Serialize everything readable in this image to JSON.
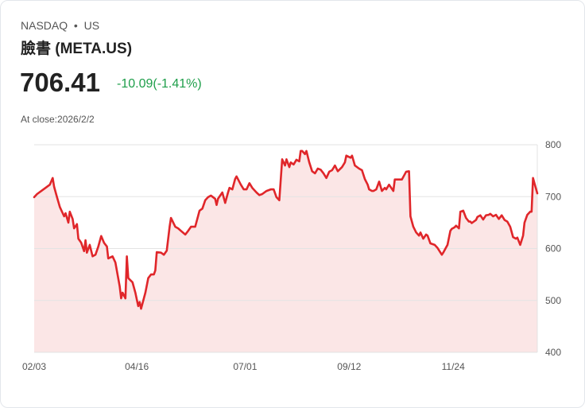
{
  "header": {
    "exchange": "NASDAQ",
    "separator": "•",
    "market": "US",
    "name": "臉書 (META.US)",
    "price": "706.41",
    "change": "-10.09(-1.41%)",
    "close_label": "At close:2026/2/2"
  },
  "colors": {
    "line": "#e0262a",
    "fill": "#fbe6e6",
    "change": "#1e9e4a",
    "grid": "#e3e3e3"
  },
  "chart_data": {
    "type": "area",
    "title": "",
    "xlabel": "",
    "ylabel": "",
    "ylim": [
      400,
      800
    ],
    "yticks": [
      800,
      700,
      600,
      500,
      400
    ],
    "xlim": [
      0,
      353
    ],
    "xticks": [
      {
        "day": 0,
        "label": "02/03"
      },
      {
        "day": 72,
        "label": "04/16"
      },
      {
        "day": 148,
        "label": "07/01"
      },
      {
        "day": 221,
        "label": "09/12"
      },
      {
        "day": 294,
        "label": "11/24"
      }
    ],
    "grid": true,
    "legend": "none",
    "x_unit": "days since 02/03",
    "series": [
      {
        "name": "META.US",
        "points": [
          [
            0,
            699
          ],
          [
            2,
            705
          ],
          [
            5,
            711
          ],
          [
            8,
            717
          ],
          [
            11,
            723
          ],
          [
            13,
            736
          ],
          [
            14,
            719
          ],
          [
            16,
            699
          ],
          [
            18,
            680
          ],
          [
            21,
            662
          ],
          [
            22,
            668
          ],
          [
            24,
            650
          ],
          [
            25,
            671
          ],
          [
            27,
            657
          ],
          [
            28,
            639
          ],
          [
            30,
            647
          ],
          [
            31,
            619
          ],
          [
            33,
            611
          ],
          [
            35,
            595
          ],
          [
            36,
            616
          ],
          [
            37,
            592
          ],
          [
            39,
            607
          ],
          [
            41,
            585
          ],
          [
            43,
            588
          ],
          [
            45,
            604
          ],
          [
            47,
            624
          ],
          [
            49,
            611
          ],
          [
            51,
            604
          ],
          [
            52,
            581
          ],
          [
            55,
            585
          ],
          [
            57,
            573
          ],
          [
            60,
            527
          ],
          [
            61,
            504
          ],
          [
            62,
            515
          ],
          [
            64,
            504
          ],
          [
            65,
            585
          ],
          [
            66,
            543
          ],
          [
            69,
            535
          ],
          [
            71,
            515
          ],
          [
            73,
            489
          ],
          [
            74,
            497
          ],
          [
            75,
            484
          ],
          [
            78,
            515
          ],
          [
            80,
            543
          ],
          [
            82,
            550
          ],
          [
            84,
            550
          ],
          [
            85,
            558
          ],
          [
            86,
            593
          ],
          [
            89,
            592
          ],
          [
            91,
            588
          ],
          [
            93,
            596
          ],
          [
            95,
            642
          ],
          [
            96,
            659
          ],
          [
            99,
            642
          ],
          [
            101,
            639
          ],
          [
            103,
            634
          ],
          [
            106,
            627
          ],
          [
            108,
            634
          ],
          [
            110,
            642
          ],
          [
            113,
            642
          ],
          [
            116,
            673
          ],
          [
            118,
            677
          ],
          [
            120,
            693
          ],
          [
            122,
            699
          ],
          [
            124,
            702
          ],
          [
            127,
            696
          ],
          [
            128,
            684
          ],
          [
            129,
            696
          ],
          [
            132,
            708
          ],
          [
            134,
            688
          ],
          [
            136,
            708
          ],
          [
            137,
            717
          ],
          [
            139,
            714
          ],
          [
            141,
            734
          ],
          [
            142,
            739
          ],
          [
            145,
            723
          ],
          [
            147,
            714
          ],
          [
            149,
            714
          ],
          [
            151,
            726
          ],
          [
            153,
            717
          ],
          [
            156,
            708
          ],
          [
            158,
            703
          ],
          [
            160,
            705
          ],
          [
            163,
            711
          ],
          [
            166,
            714
          ],
          [
            168,
            714
          ],
          [
            170,
            699
          ],
          [
            172,
            693
          ],
          [
            174,
            772
          ],
          [
            176,
            760
          ],
          [
            177,
            772
          ],
          [
            179,
            757
          ],
          [
            180,
            766
          ],
          [
            182,
            762
          ],
          [
            184,
            771
          ],
          [
            186,
            768
          ],
          [
            187,
            788
          ],
          [
            188,
            788
          ],
          [
            190,
            782
          ],
          [
            191,
            788
          ],
          [
            193,
            766
          ],
          [
            195,
            749
          ],
          [
            197,
            745
          ],
          [
            199,
            754
          ],
          [
            201,
            752
          ],
          [
            203,
            745
          ],
          [
            205,
            736
          ],
          [
            207,
            748
          ],
          [
            209,
            751
          ],
          [
            211,
            760
          ],
          [
            213,
            749
          ],
          [
            216,
            757
          ],
          [
            218,
            766
          ],
          [
            219,
            779
          ],
          [
            222,
            775
          ],
          [
            223,
            779
          ],
          [
            225,
            760
          ],
          [
            228,
            754
          ],
          [
            230,
            751
          ],
          [
            232,
            734
          ],
          [
            234,
            723
          ],
          [
            235,
            714
          ],
          [
            237,
            711
          ],
          [
            238,
            711
          ],
          [
            240,
            714
          ],
          [
            242,
            729
          ],
          [
            244,
            711
          ],
          [
            246,
            717
          ],
          [
            247,
            714
          ],
          [
            249,
            723
          ],
          [
            252,
            711
          ],
          [
            253,
            733
          ],
          [
            255,
            733
          ],
          [
            258,
            733
          ],
          [
            261,
            748
          ],
          [
            263,
            749
          ],
          [
            264,
            662
          ],
          [
            266,
            642
          ],
          [
            268,
            631
          ],
          [
            270,
            625
          ],
          [
            271,
            631
          ],
          [
            273,
            619
          ],
          [
            275,
            627
          ],
          [
            276,
            625
          ],
          [
            278,
            610
          ],
          [
            281,
            607
          ],
          [
            283,
            601
          ],
          [
            286,
            588
          ],
          [
            287,
            592
          ],
          [
            290,
            607
          ],
          [
            292,
            634
          ],
          [
            293,
            638
          ],
          [
            295,
            641
          ],
          [
            296,
            644
          ],
          [
            298,
            639
          ],
          [
            299,
            671
          ],
          [
            301,
            673
          ],
          [
            303,
            659
          ],
          [
            305,
            652
          ],
          [
            306,
            652
          ],
          [
            307,
            649
          ],
          [
            310,
            655
          ],
          [
            311,
            661
          ],
          [
            313,
            664
          ],
          [
            315,
            656
          ],
          [
            317,
            664
          ],
          [
            319,
            665
          ],
          [
            320,
            667
          ],
          [
            322,
            662
          ],
          [
            324,
            665
          ],
          [
            326,
            657
          ],
          [
            328,
            664
          ],
          [
            330,
            655
          ],
          [
            332,
            652
          ],
          [
            334,
            642
          ],
          [
            336,
            622
          ],
          [
            338,
            619
          ],
          [
            339,
            621
          ],
          [
            341,
            607
          ],
          [
            343,
            625
          ],
          [
            344,
            650
          ],
          [
            346,
            665
          ],
          [
            348,
            671
          ],
          [
            349,
            671
          ],
          [
            350,
            736
          ],
          [
            352,
            716
          ],
          [
            353,
            706.41
          ]
        ]
      }
    ]
  }
}
